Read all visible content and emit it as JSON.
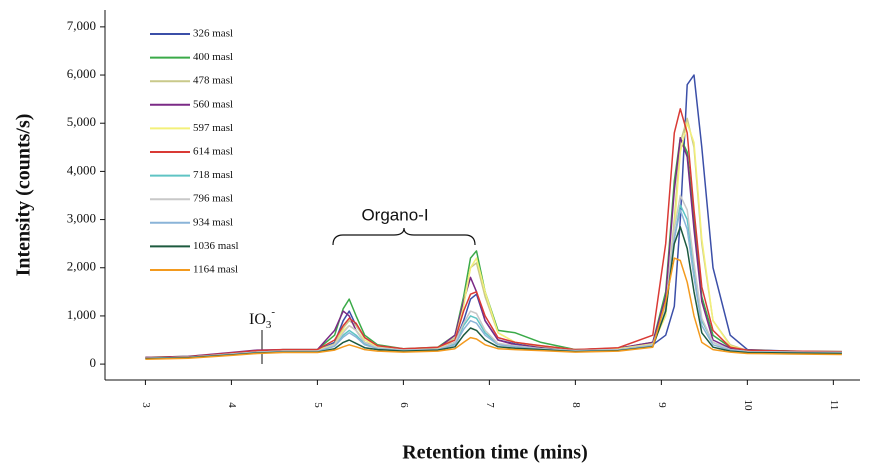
{
  "chart_data": {
    "type": "line",
    "x_label": "Retention time (mins)",
    "y_label": "Intensity (counts/s)",
    "annotations": {
      "io3": {
        "text": "IO",
        "sub": "3",
        "sup": "-"
      },
      "organo": "Organo-I"
    },
    "xlim": [
      2.53,
      11.31
    ],
    "ylim": [
      -330,
      7350
    ],
    "xticks": [
      3,
      4,
      5,
      6,
      7,
      8,
      9,
      10,
      11
    ],
    "yticks": [
      0,
      {
        "value": 1000,
        "label": "1,000"
      },
      {
        "value": 2000,
        "label": "2,000"
      },
      {
        "value": 3000,
        "label": "3,000"
      },
      {
        "value": 4000,
        "label": "4,000"
      },
      {
        "value": 5000,
        "label": "5,000"
      },
      {
        "value": 6000,
        "label": "6,000"
      },
      {
        "value": 7000,
        "label": "7,000"
      }
    ],
    "legend": "upper left",
    "x": [
      3,
      3.5,
      4,
      4.3,
      4.6,
      5,
      5.2,
      5.3,
      5.37,
      5.45,
      5.55,
      5.7,
      6,
      6.4,
      6.6,
      6.7,
      6.78,
      6.85,
      6.95,
      7.1,
      7.3,
      7.6,
      8,
      8.5,
      8.9,
      9.05,
      9.15,
      9.22,
      9.3,
      9.38,
      9.47,
      9.6,
      9.8,
      10,
      10.5,
      11.1
    ],
    "series": [
      {
        "name": "326 masl",
        "color": "#3b4fa8",
        "values": [
          130,
          150,
          220,
          260,
          290,
          290,
          450,
          900,
          1100,
          800,
          550,
          380,
          300,
          320,
          450,
          900,
          1350,
          1450,
          900,
          500,
          420,
          350,
          300,
          320,
          400,
          600,
          1200,
          3000,
          5800,
          6000,
          4500,
          2000,
          600,
          300,
          270,
          250
        ]
      },
      {
        "name": "400 masl",
        "color": "#3aaa48",
        "values": [
          140,
          160,
          230,
          270,
          300,
          300,
          600,
          1150,
          1350,
          1000,
          600,
          400,
          320,
          350,
          600,
          1400,
          2200,
          2350,
          1500,
          700,
          650,
          450,
          300,
          330,
          450,
          1500,
          3800,
          4700,
          4400,
          3000,
          1400,
          600,
          350,
          290,
          270,
          260
        ]
      },
      {
        "name": "478 masl",
        "color": "#c9c98a",
        "values": [
          130,
          150,
          220,
          260,
          290,
          290,
          420,
          750,
          900,
          800,
          550,
          380,
          300,
          330,
          550,
          1300,
          2000,
          2100,
          1400,
          650,
          450,
          380,
          300,
          320,
          420,
          1100,
          3000,
          4600,
          5100,
          4500,
          2500,
          900,
          400,
          280,
          260,
          250
        ]
      },
      {
        "name": "560 masl",
        "color": "#7b2a86",
        "values": [
          140,
          160,
          240,
          290,
          300,
          300,
          700,
          1100,
          1000,
          700,
          450,
          350,
          300,
          330,
          600,
          1300,
          1800,
          1500,
          900,
          500,
          400,
          350,
          300,
          330,
          450,
          1400,
          3600,
          4700,
          4300,
          2800,
          1300,
          500,
          330,
          280,
          260,
          250
        ]
      },
      {
        "name": "597 masl",
        "color": "#f3f07a",
        "values": [
          130,
          150,
          220,
          260,
          290,
          290,
          400,
          700,
          800,
          700,
          500,
          360,
          300,
          320,
          500,
          1200,
          2000,
          2200,
          1500,
          650,
          450,
          370,
          300,
          320,
          420,
          1000,
          2800,
          4400,
          5000,
          4600,
          2600,
          900,
          380,
          280,
          260,
          250
        ]
      },
      {
        "name": "614 masl",
        "color": "#d93a35",
        "values": [
          130,
          150,
          230,
          280,
          300,
          300,
          500,
          800,
          950,
          850,
          550,
          380,
          320,
          350,
          500,
          1100,
          1450,
          1500,
          1000,
          550,
          450,
          380,
          300,
          340,
          600,
          2500,
          4800,
          5300,
          4800,
          3200,
          1600,
          700,
          350,
          290,
          270,
          260
        ]
      },
      {
        "name": "718 masl",
        "color": "#5fc4c4",
        "values": [
          120,
          140,
          210,
          250,
          270,
          270,
          380,
          600,
          700,
          600,
          420,
          330,
          290,
          310,
          420,
          800,
          1000,
          950,
          650,
          420,
          380,
          320,
          280,
          300,
          400,
          1100,
          2600,
          3300,
          3000,
          2000,
          900,
          450,
          300,
          260,
          250,
          240
        ]
      },
      {
        "name": "796 masl",
        "color": "#c8c8c8",
        "values": [
          120,
          140,
          210,
          250,
          270,
          270,
          400,
          650,
          800,
          700,
          450,
          340,
          290,
          310,
          450,
          850,
          1100,
          1050,
          700,
          430,
          380,
          320,
          280,
          300,
          400,
          1200,
          2800,
          3500,
          3200,
          2100,
          950,
          450,
          300,
          260,
          250,
          240
        ]
      },
      {
        "name": "934 masl",
        "color": "#8ab4d8",
        "values": [
          120,
          140,
          200,
          240,
          260,
          260,
          370,
          560,
          650,
          560,
          400,
          320,
          280,
          300,
          400,
          720,
          900,
          850,
          600,
          400,
          360,
          310,
          270,
          290,
          380,
          1100,
          2600,
          3200,
          2800,
          1800,
          800,
          400,
          290,
          250,
          240,
          230
        ]
      },
      {
        "name": "1036 masl",
        "color": "#1d5a3f",
        "values": [
          110,
          130,
          190,
          230,
          250,
          250,
          320,
          450,
          500,
          430,
          340,
          300,
          270,
          290,
          360,
          600,
          750,
          700,
          500,
          360,
          330,
          300,
          260,
          280,
          360,
          1100,
          2500,
          2850,
          2400,
          1500,
          650,
          350,
          270,
          240,
          230,
          220
        ]
      },
      {
        "name": "1164 masl",
        "color": "#f39a1e",
        "values": [
          100,
          120,
          180,
          220,
          240,
          240,
          290,
          360,
          400,
          360,
          300,
          270,
          250,
          270,
          320,
          450,
          550,
          520,
          400,
          320,
          300,
          280,
          250,
          270,
          350,
          1300,
          2200,
          2150,
          1700,
          1000,
          450,
          300,
          250,
          220,
          210,
          200
        ]
      }
    ]
  }
}
